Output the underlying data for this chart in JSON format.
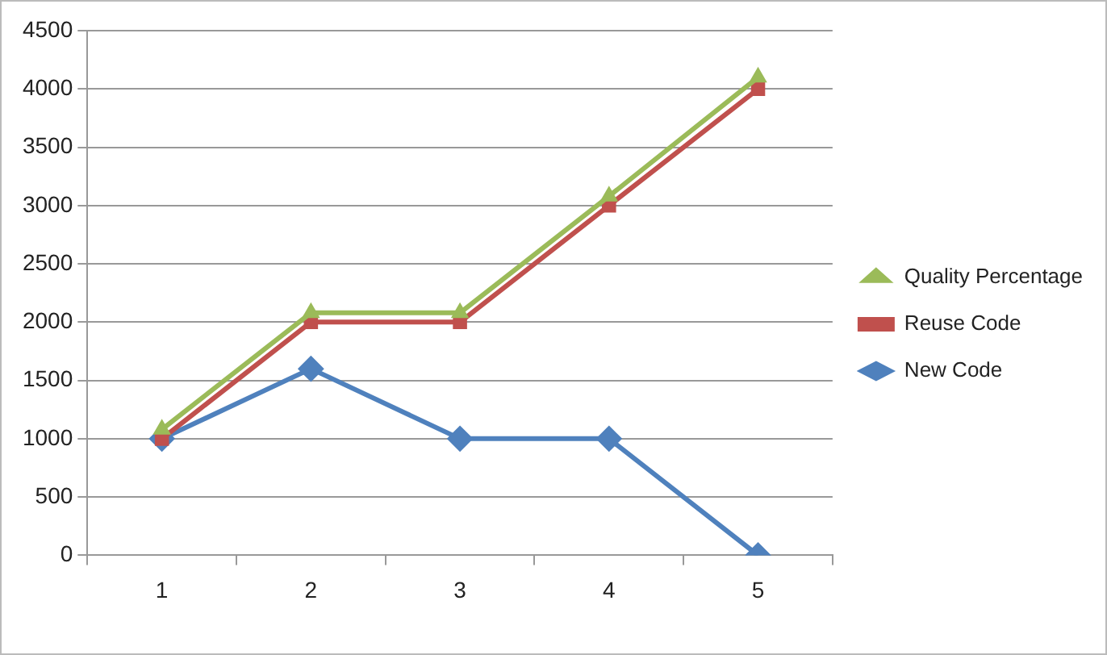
{
  "chart_data": {
    "type": "line",
    "categories": [
      "1",
      "2",
      "3",
      "4",
      "5"
    ],
    "series": [
      {
        "name": "Quality Percentage",
        "color": "#9bbb59",
        "marker": "triangle",
        "values": [
          1080,
          2080,
          2080,
          3080,
          4100
        ]
      },
      {
        "name": "Reuse Code",
        "color": "#c0504d",
        "marker": "square",
        "values": [
          1000,
          2000,
          2000,
          3000,
          4000
        ]
      },
      {
        "name": "New Code",
        "color": "#4f81bd",
        "marker": "diamond",
        "values": [
          1000,
          1600,
          1000,
          1000,
          0
        ]
      }
    ],
    "ylim": [
      0,
      4500
    ],
    "yticks": [
      0,
      500,
      1000,
      1500,
      2000,
      2500,
      3000,
      3500,
      4000,
      4500
    ],
    "grid": "y",
    "legend": "right",
    "line_style": "solid"
  }
}
